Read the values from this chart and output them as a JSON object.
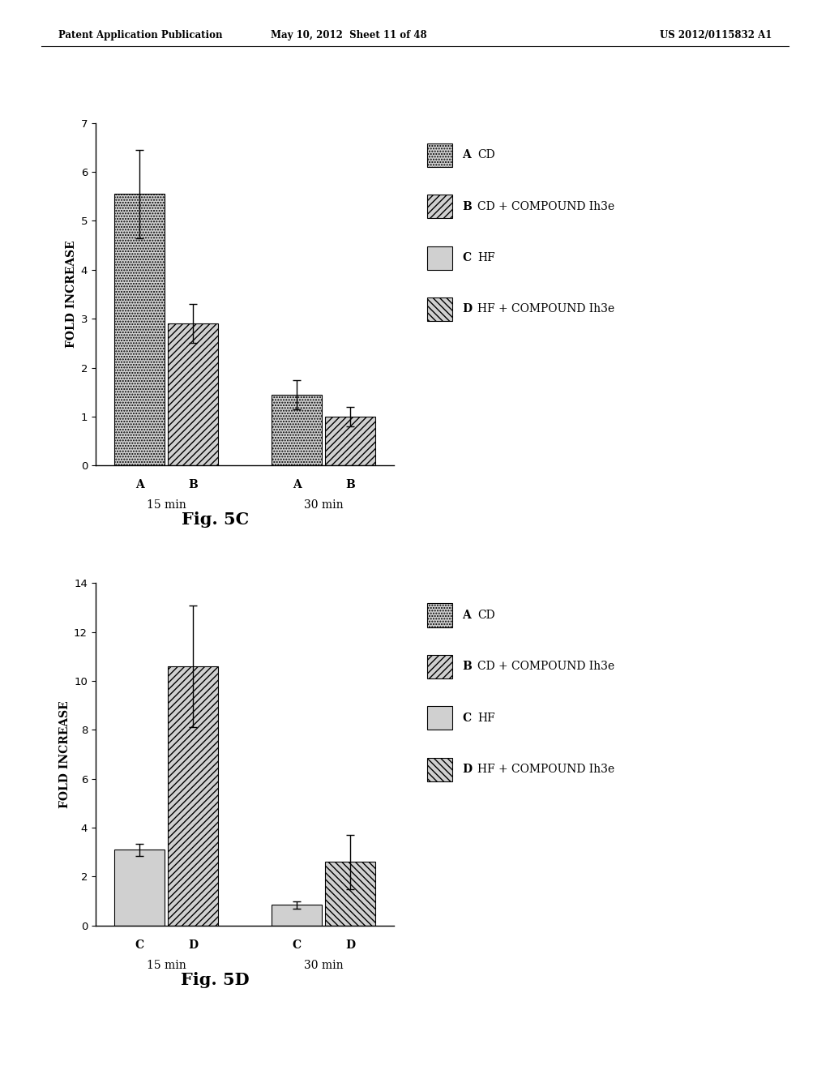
{
  "header_left": "Patent Application Publication",
  "header_mid": "May 10, 2012  Sheet 11 of 48",
  "header_right": "US 2012/0115832 A1",
  "fig5c": {
    "title": "Fig. 5C",
    "ylabel": "FOLD INCREASE",
    "ylim": [
      0,
      7
    ],
    "yticks": [
      0,
      1,
      2,
      3,
      4,
      5,
      6,
      7
    ],
    "groups": [
      "15 min",
      "30 min"
    ],
    "bars": [
      {
        "label": "A",
        "group": 0,
        "value": 5.55,
        "yerr": 0.9,
        "hatch": "dots"
      },
      {
        "label": "B",
        "group": 0,
        "value": 2.9,
        "yerr": 0.4,
        "hatch": "fwdiag"
      },
      {
        "label": "A",
        "group": 1,
        "value": 1.45,
        "yerr": 0.3,
        "hatch": "dots"
      },
      {
        "label": "B",
        "group": 1,
        "value": 1.0,
        "yerr": 0.2,
        "hatch": "fwdiag"
      }
    ],
    "legend": [
      {
        "key": "A",
        "label": "CD",
        "hatch": "dots"
      },
      {
        "key": "B",
        "label": "CD + COMPOUND Ih3e",
        "hatch": "fwdiag"
      },
      {
        "key": "C",
        "label": "HF",
        "hatch": "horiz"
      },
      {
        "key": "D",
        "label": "HF + COMPOUND Ih3e",
        "hatch": "bkdiag"
      }
    ]
  },
  "fig5d": {
    "title": "Fig. 5D",
    "ylabel": "FOLD INCREASE",
    "ylim": [
      0,
      14
    ],
    "yticks": [
      0,
      2,
      4,
      6,
      8,
      10,
      12,
      14
    ],
    "groups": [
      "15 min",
      "30 min"
    ],
    "bars": [
      {
        "label": "C",
        "group": 0,
        "value": 3.1,
        "yerr": 0.25,
        "hatch": "horiz"
      },
      {
        "label": "D",
        "group": 0,
        "value": 10.6,
        "yerr": 2.5,
        "hatch": "fwdiag"
      },
      {
        "label": "C",
        "group": 1,
        "value": 0.85,
        "yerr": 0.15,
        "hatch": "horiz"
      },
      {
        "label": "D",
        "group": 1,
        "value": 2.6,
        "yerr": 1.1,
        "hatch": "bkdiag"
      }
    ],
    "legend": [
      {
        "key": "A",
        "label": "CD",
        "hatch": "dots"
      },
      {
        "key": "B",
        "label": "CD + COMPOUND Ih3e",
        "hatch": "fwdiag"
      },
      {
        "key": "C",
        "label": "HF",
        "hatch": "horiz"
      },
      {
        "key": "D",
        "label": "HF + COMPOUND Ih3e",
        "hatch": "bkdiag"
      }
    ]
  },
  "bar_width": 0.32,
  "bar_color": "#d0d0d0",
  "bar_edgecolor": "#000000",
  "background_color": "#ffffff",
  "font_family": "DejaVu Serif"
}
